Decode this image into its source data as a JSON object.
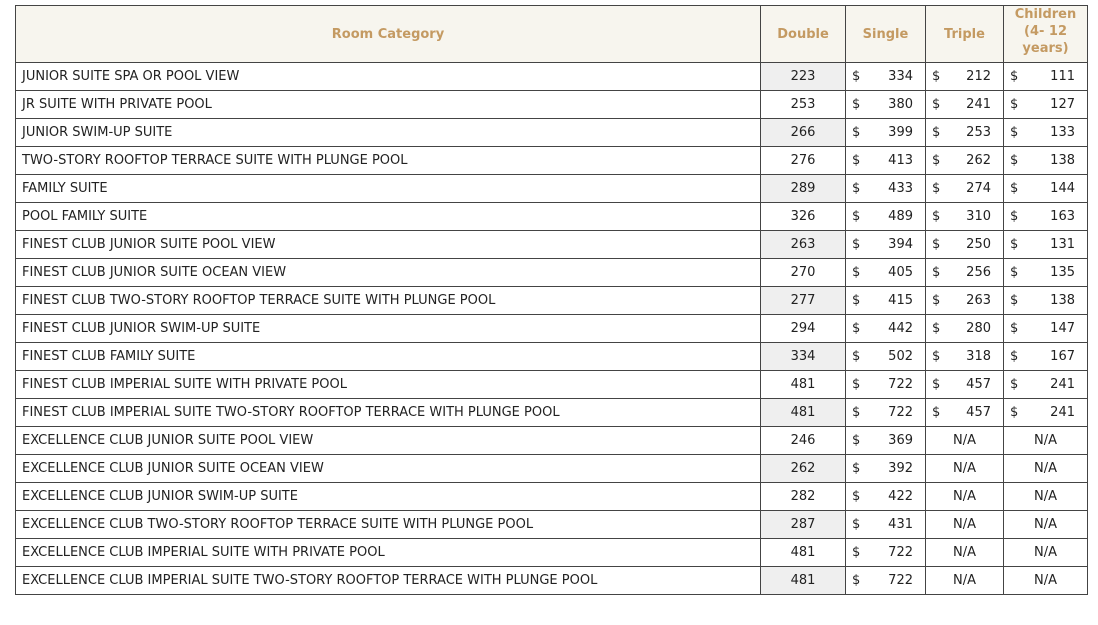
{
  "table": {
    "header": [
      "Room Category",
      "Double",
      "Single",
      "Triple",
      "Children (4- 12 years)"
    ],
    "rows": [
      [
        "JUNIOR SUITE SPA OR POOL VIEW",
        223,
        [
          "$",
          334
        ],
        [
          "$",
          212
        ],
        [
          "$",
          111
        ]
      ],
      [
        "JR SUITE WITH PRIVATE POOL",
        253,
        [
          "$",
          380
        ],
        [
          "$",
          241
        ],
        [
          "$",
          127
        ]
      ],
      [
        "JUNIOR SWIM-UP SUITE",
        266,
        [
          "$",
          399
        ],
        [
          "$",
          253
        ],
        [
          "$",
          133
        ]
      ],
      [
        "TWO-STORY ROOFTOP TERRACE SUITE WITH PLUNGE POOL",
        276,
        [
          "$",
          413
        ],
        [
          "$",
          262
        ],
        [
          "$",
          138
        ]
      ],
      [
        "FAMILY SUITE",
        289,
        [
          "$",
          433
        ],
        [
          "$",
          274
        ],
        [
          "$",
          144
        ]
      ],
      [
        "POOL FAMILY SUITE",
        326,
        [
          "$",
          489
        ],
        [
          "$",
          310
        ],
        [
          "$",
          163
        ]
      ],
      [
        "FINEST CLUB JUNIOR SUITE POOL VIEW",
        263,
        [
          "$",
          394
        ],
        [
          "$",
          250
        ],
        [
          "$",
          131
        ]
      ],
      [
        "FINEST CLUB JUNIOR SUITE OCEAN VIEW",
        270,
        [
          "$",
          405
        ],
        [
          "$",
          256
        ],
        [
          "$",
          135
        ]
      ],
      [
        "FINEST CLUB TWO-STORY ROOFTOP TERRACE SUITE WITH PLUNGE POOL",
        277,
        [
          "$",
          415
        ],
        [
          "$",
          263
        ],
        [
          "$",
          138
        ]
      ],
      [
        "FINEST CLUB JUNIOR SWIM-UP SUITE",
        294,
        [
          "$",
          442
        ],
        [
          "$",
          280
        ],
        [
          "$",
          147
        ]
      ],
      [
        "FINEST CLUB FAMILY SUITE",
        334,
        [
          "$",
          502
        ],
        [
          "$",
          318
        ],
        [
          "$",
          167
        ]
      ],
      [
        "FINEST CLUB IMPERIAL SUITE WITH PRIVATE POOL",
        481,
        [
          "$",
          722
        ],
        [
          "$",
          457
        ],
        [
          "$",
          241
        ]
      ],
      [
        "FINEST CLUB IMPERIAL SUITE TWO-STORY ROOFTOP TERRACE WITH PLUNGE POOL",
        481,
        [
          "$",
          722
        ],
        [
          "$",
          457
        ],
        [
          "$",
          241
        ]
      ],
      [
        "EXCELLENCE CLUB JUNIOR SUITE POOL VIEW",
        246,
        [
          "$",
          369
        ],
        "N/A",
        "N/A"
      ],
      [
        "EXCELLENCE CLUB JUNIOR SUITE OCEAN VIEW",
        262,
        [
          "$",
          392
        ],
        "N/A",
        "N/A"
      ],
      [
        "EXCELLENCE CLUB JUNIOR SWIM-UP SUITE",
        282,
        [
          "$",
          422
        ],
        "N/A",
        "N/A"
      ],
      [
        "EXCELLENCE CLUB TWO-STORY ROOFTOP TERRACE SUITE WITH PLUNGE POOL",
        287,
        [
          "$",
          431
        ],
        "N/A",
        "N/A"
      ],
      [
        "EXCELLENCE CLUB IMPERIAL SUITE WITH PRIVATE POOL",
        481,
        [
          "$",
          722
        ],
        "N/A",
        "N/A"
      ],
      [
        "EXCELLENCE CLUB IMPERIAL SUITE TWO-STORY ROOFTOP TERRACE WITH PLUNGE POOL",
        481,
        [
          "$",
          722
        ],
        "N/A",
        "N/A"
      ]
    ]
  }
}
